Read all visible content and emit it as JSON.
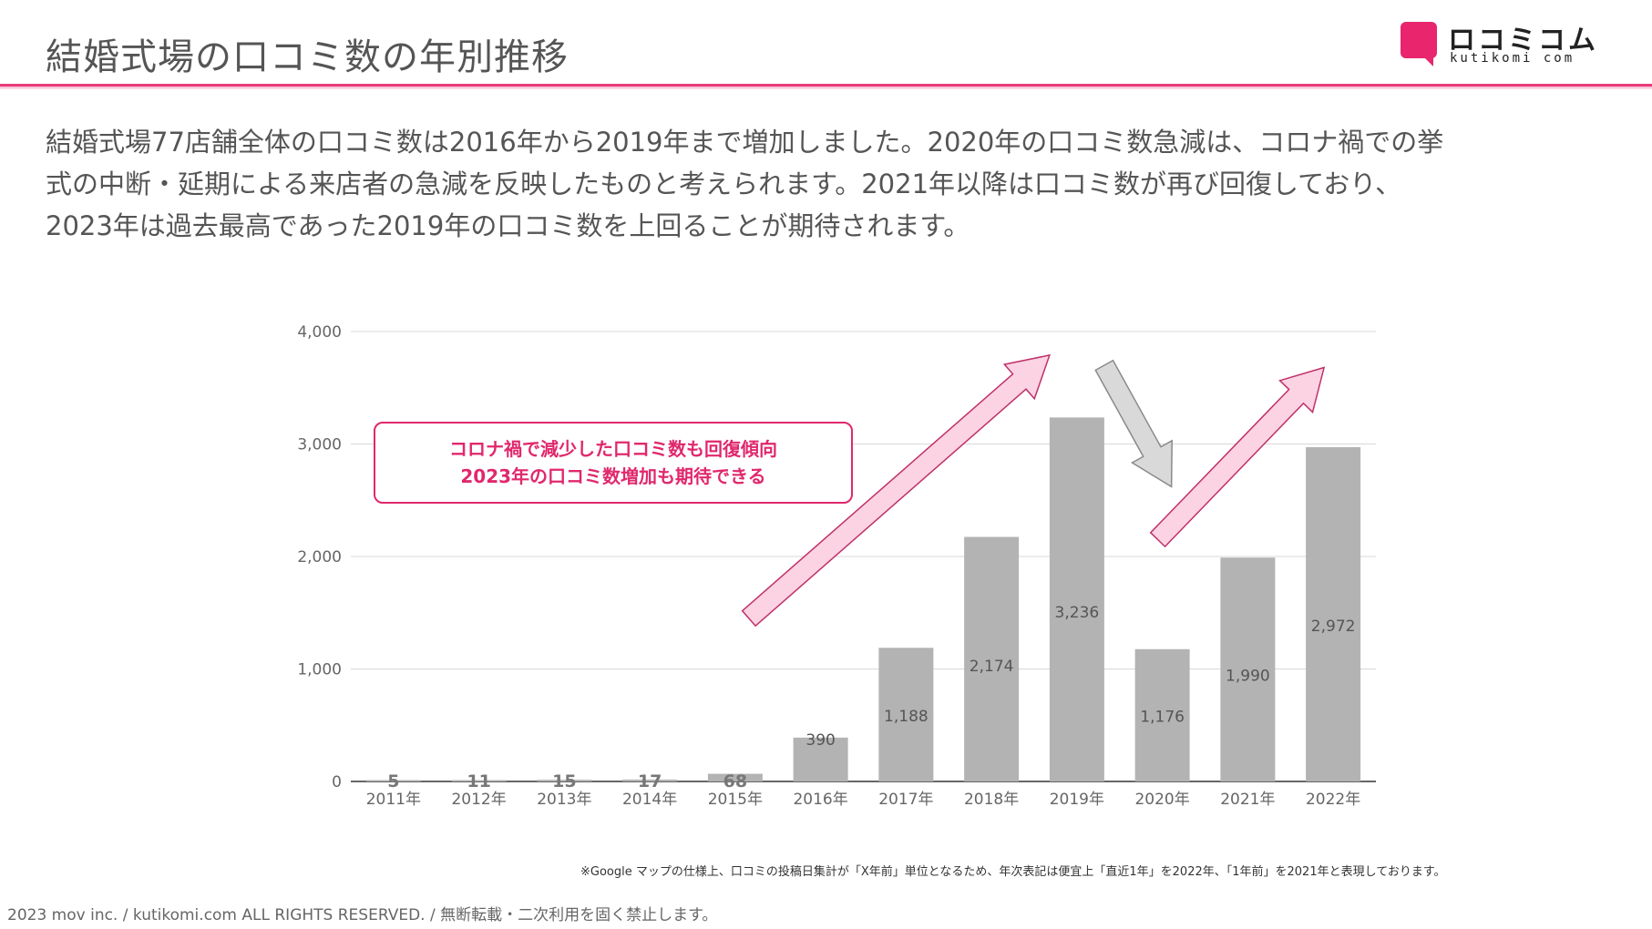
{
  "header": {
    "title": "結婚式場の口コミ数の年別推移",
    "logo_text": "ロコミコム",
    "logo_sub": "kutikomi com"
  },
  "body_text": [
    "結婚式場77店舗全体の口コミ数は2016年から2019年まで増加しました。2020年の口コミ数急減は、コロナ禍での挙",
    "式の中断・延期による来店者の急減を反映したものと考えられます。2021年以降は口コミ数が再び回復しており、",
    "2023年は過去最高であった2019年の口コミ数を上回ることが期待されます。"
  ],
  "callout": {
    "line1": "コロナ禍で減少した口コミ数も回復傾向",
    "line2": "2023年の口コミ数増加も期待できる"
  },
  "chart_data": {
    "type": "bar",
    "categories": [
      "2011年",
      "2012年",
      "2013年",
      "2014年",
      "2015年",
      "2016年",
      "2017年",
      "2018年",
      "2019年",
      "2020年",
      "2021年",
      "2022年"
    ],
    "values": [
      5,
      11,
      15,
      17,
      68,
      390,
      1188,
      2174,
      3236,
      1176,
      1990,
      2972
    ],
    "data_labels": [
      "5",
      "11",
      "15",
      "17",
      "68",
      "390",
      "1,188",
      "2,174",
      "3,236",
      "1,176",
      "1,990",
      "2,972"
    ],
    "y_ticks": [
      0,
      1000,
      2000,
      3000,
      4000
    ],
    "y_tick_labels": [
      "0",
      "1,000",
      "2,000",
      "3,000",
      "4,000"
    ],
    "ylim": [
      0,
      4000
    ],
    "title": "",
    "xlabel": "",
    "ylabel": "",
    "grid": true,
    "bar_color": "#b3b3b3",
    "grid_color": "#d9d9d9"
  },
  "arrows": [
    {
      "from_category": "2015年",
      "to_category": "2019年",
      "direction": "up",
      "color": "#fbd3e3"
    },
    {
      "from_category": "2019年",
      "to_category": "2020年",
      "direction": "down",
      "color": "#d9d9d9"
    },
    {
      "from_category": "2020年",
      "to_category": "2022年",
      "direction": "up",
      "color": "#fbd3e3"
    }
  ],
  "footnote": "※Google マップの仕様上、口コミの投稿日集計が「X年前」単位となるため、年次表記は便宜上「直近1年」を2022年、「1年前」を2021年と表現しております。",
  "footer": "2023 mov inc. / kutikomi.com ALL RIGHTS RESERVED. / 無断転載・二次利用を固く禁止します。",
  "colors": {
    "accent": "#e8256d",
    "bar": "#b3b3b3",
    "arrow_up": "#fbd3e3",
    "arrow_down": "#d9d9d9"
  }
}
